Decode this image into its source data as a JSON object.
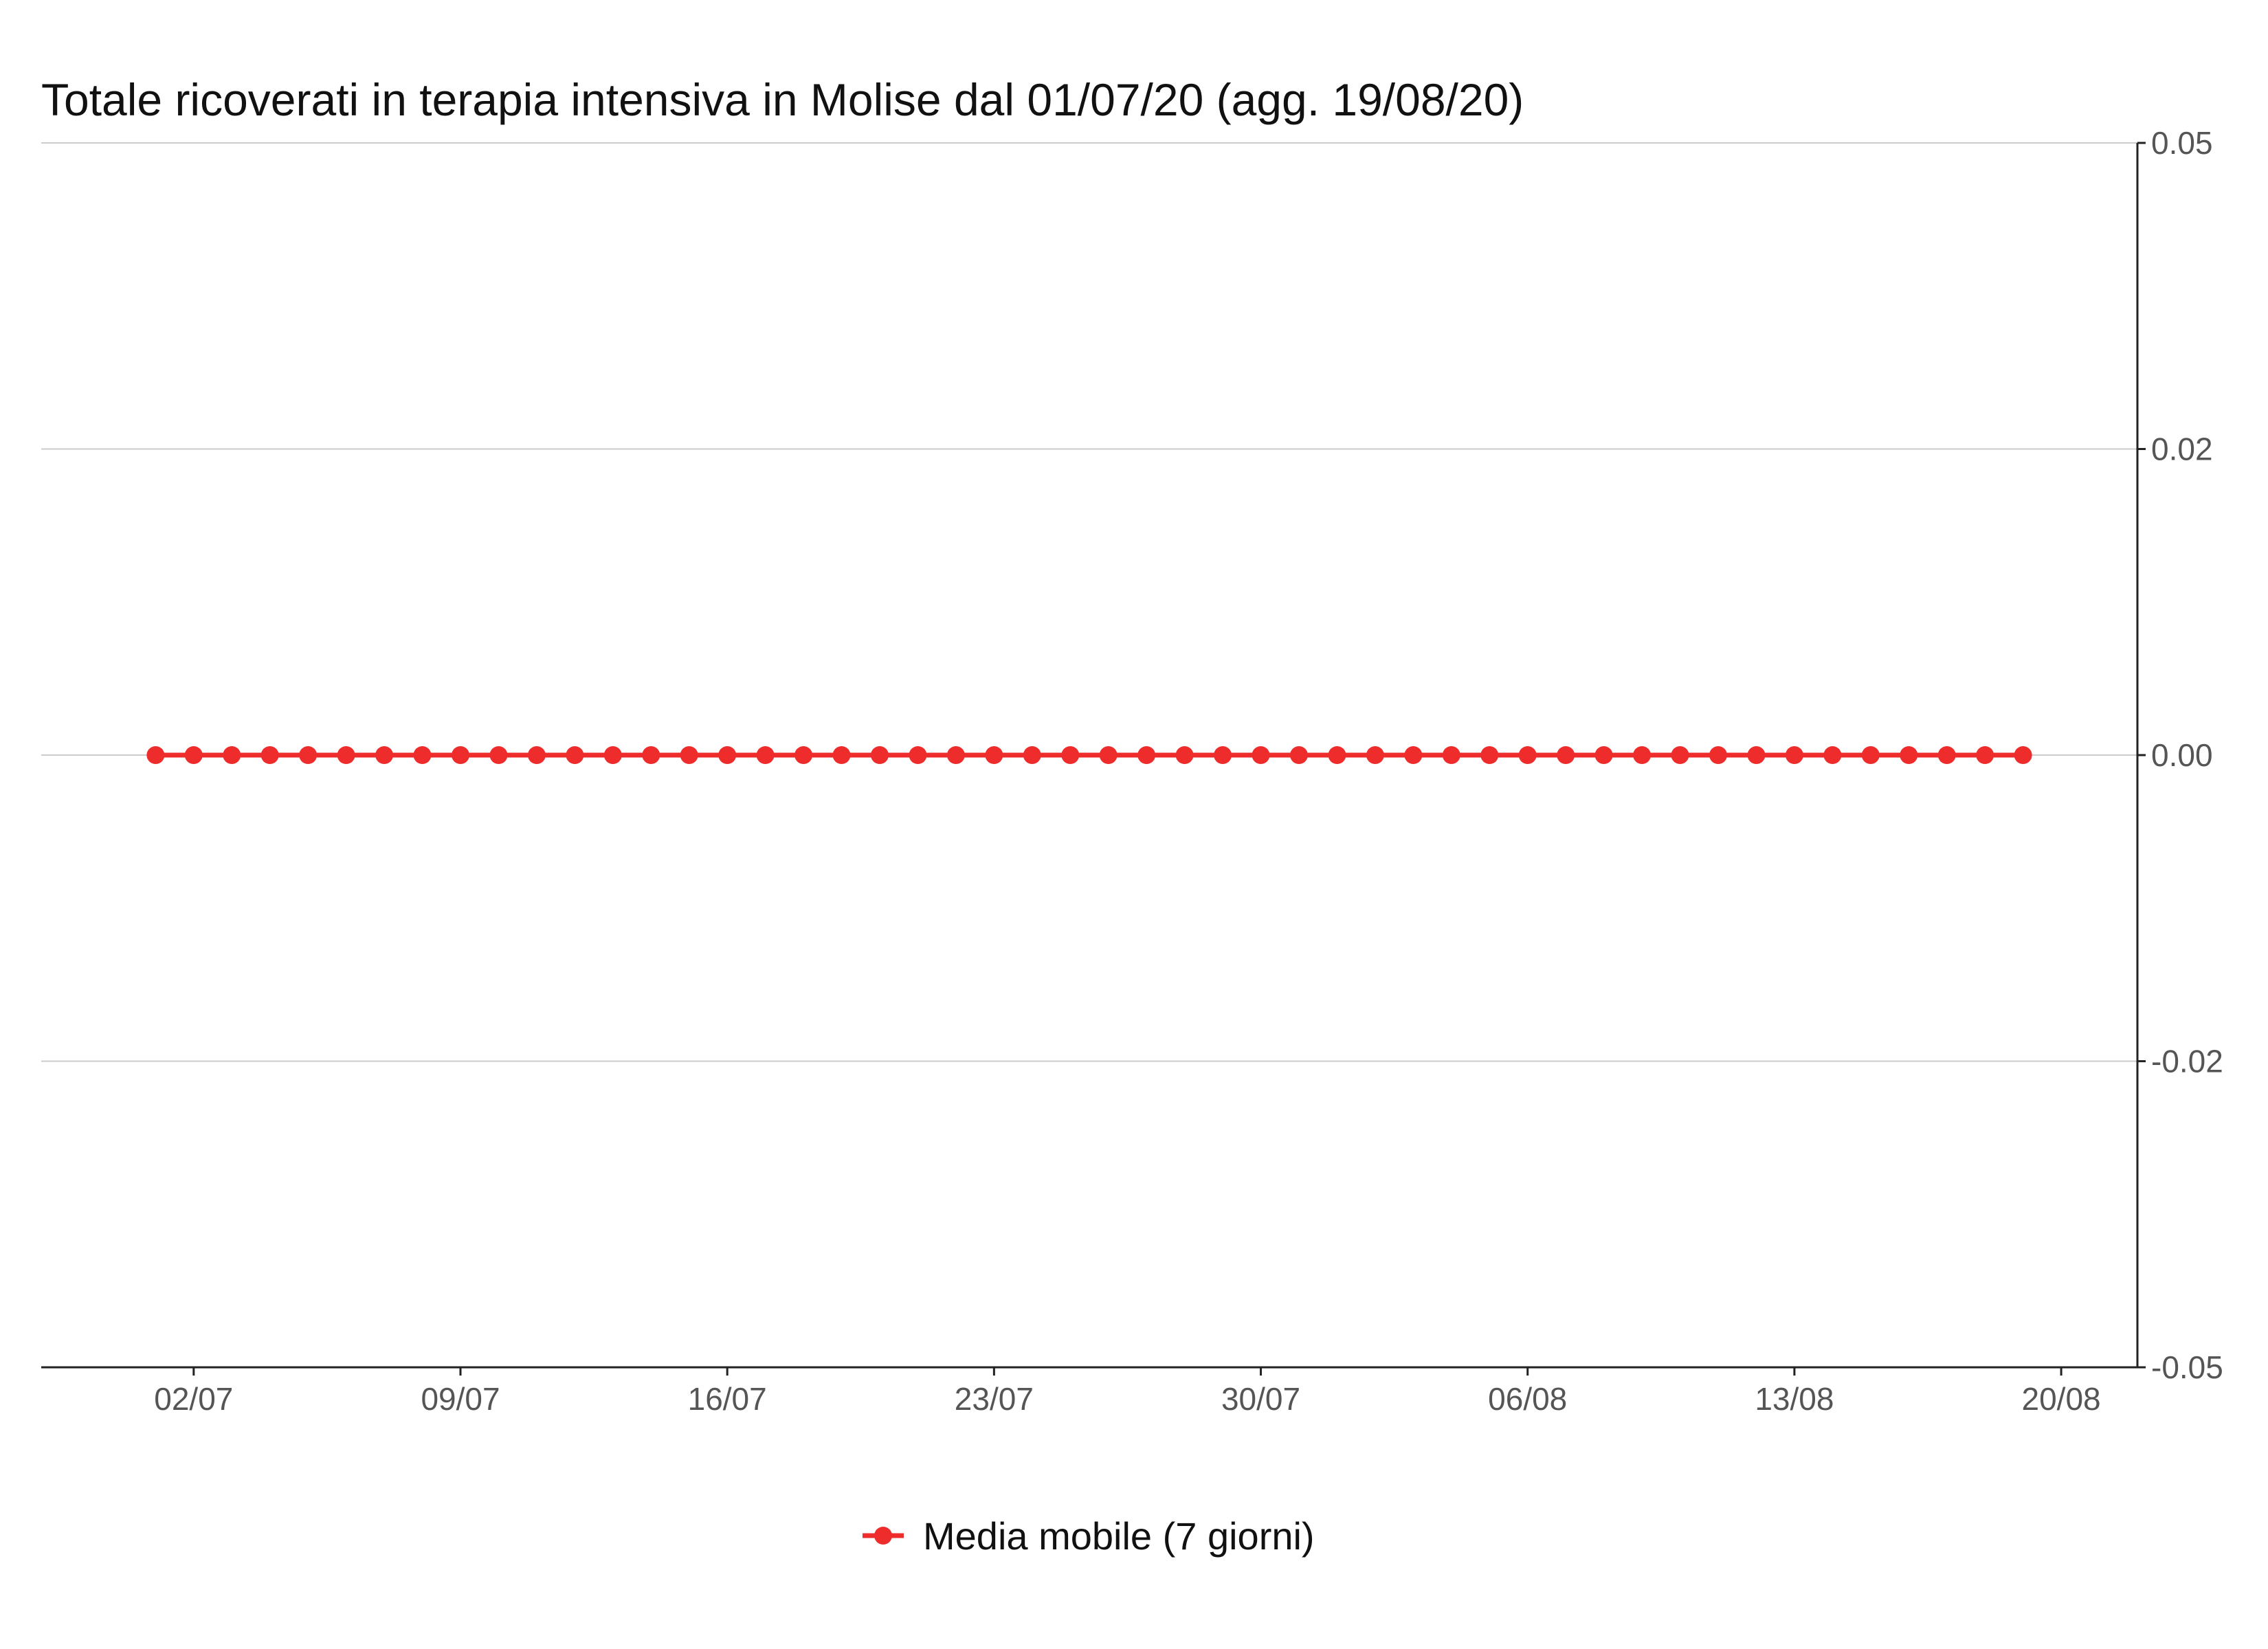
{
  "chart_data": {
    "type": "line",
    "title": "Totale ricoverati in terapia intensiva in Molise dal 01/07/20 (agg. 19/08/20)",
    "xlabel": "",
    "ylabel": "",
    "x_start": "2020-07-01",
    "x_end": "2020-08-19",
    "xlim": [
      "2020-06-28",
      "2020-08-22"
    ],
    "ylim": [
      -0.05,
      0.05
    ],
    "y_axis_position": "right",
    "grid": "horizontal",
    "legend_position": "bottom-center",
    "x_ticks": [
      {
        "date": "2020-07-02",
        "label": "02/07"
      },
      {
        "date": "2020-07-09",
        "label": "09/07"
      },
      {
        "date": "2020-07-16",
        "label": "16/07"
      },
      {
        "date": "2020-07-23",
        "label": "23/07"
      },
      {
        "date": "2020-07-30",
        "label": "30/07"
      },
      {
        "date": "2020-08-06",
        "label": "06/08"
      },
      {
        "date": "2020-08-13",
        "label": "13/08"
      },
      {
        "date": "2020-08-20",
        "label": "20/08"
      }
    ],
    "y_ticks": [
      {
        "value": 0.05,
        "label": "0.05"
      },
      {
        "value": 0.025,
        "label": "0.02"
      },
      {
        "value": 0.0,
        "label": "0.00"
      },
      {
        "value": -0.025,
        "label": "-0.02"
      },
      {
        "value": -0.05,
        "label": "-0.05"
      }
    ],
    "series": [
      {
        "name": "Media mobile (7 giorni)",
        "color": "#ee2c2c",
        "values": [
          0,
          0,
          0,
          0,
          0,
          0,
          0,
          0,
          0,
          0,
          0,
          0,
          0,
          0,
          0,
          0,
          0,
          0,
          0,
          0,
          0,
          0,
          0,
          0,
          0,
          0,
          0,
          0,
          0,
          0,
          0,
          0,
          0,
          0,
          0,
          0,
          0,
          0,
          0,
          0,
          0,
          0,
          0,
          0,
          0,
          0,
          0,
          0,
          0,
          0
        ]
      }
    ]
  }
}
